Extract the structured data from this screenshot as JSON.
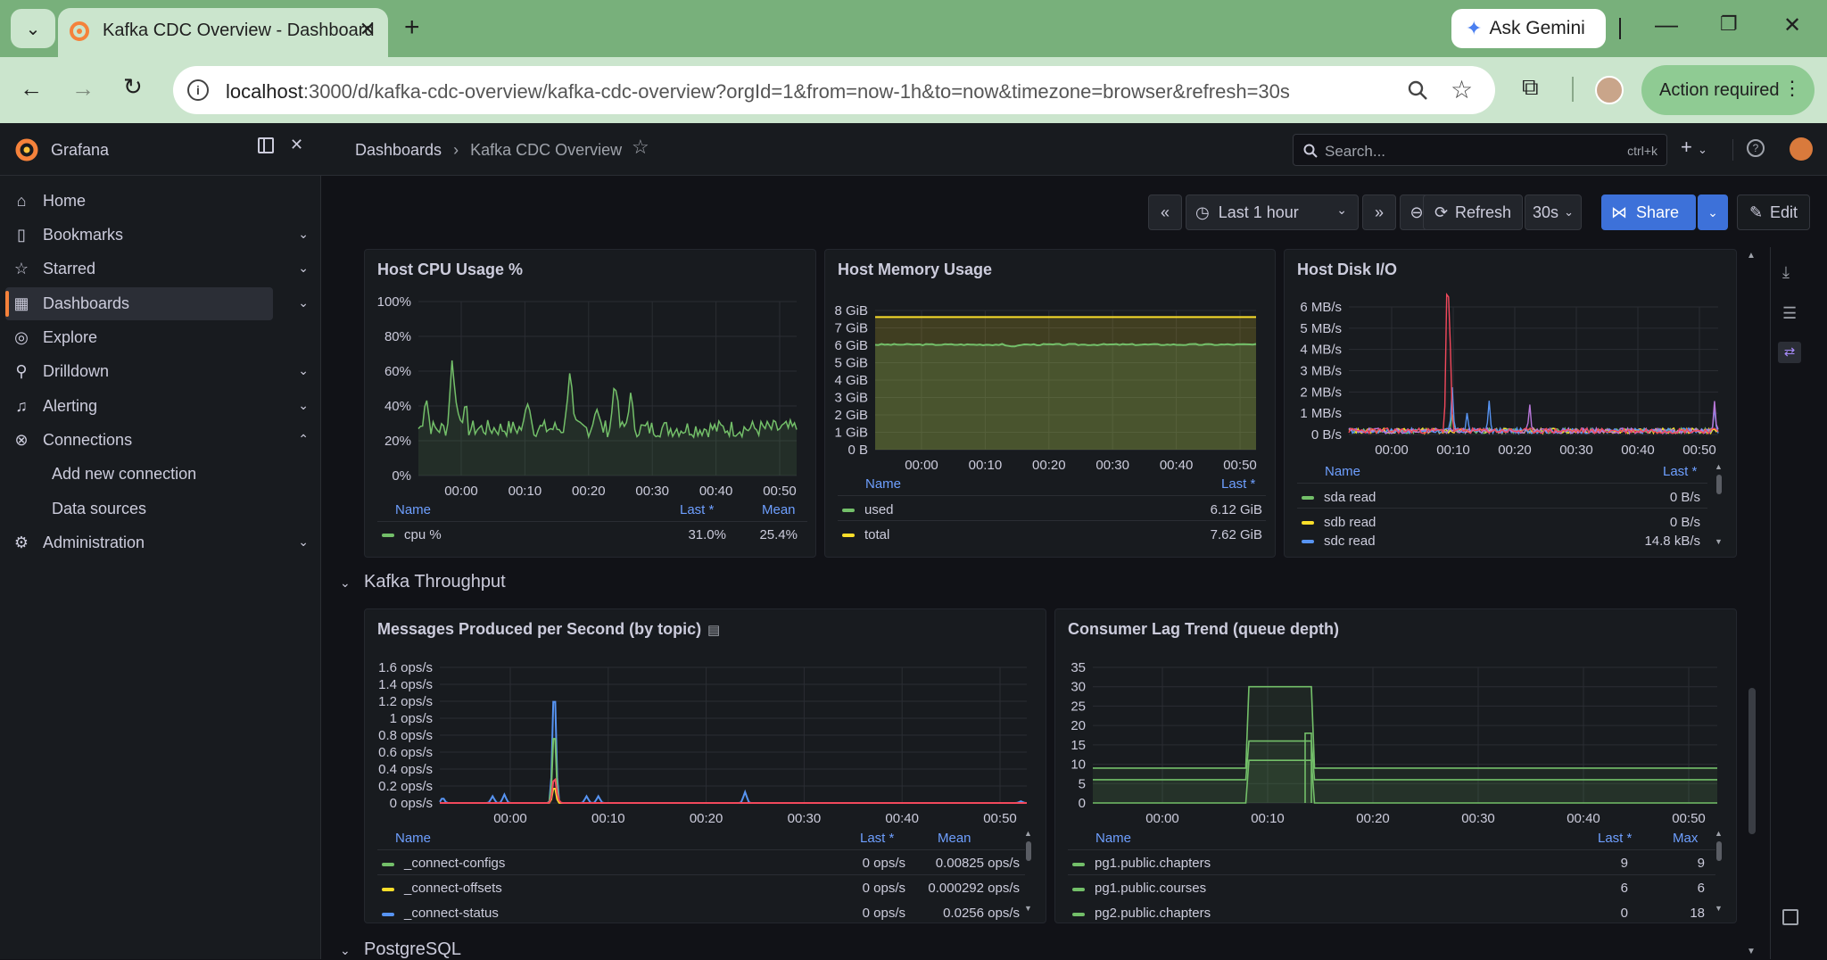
{
  "browser": {
    "tab_title": "Kafka CDC Overview - Dashboard",
    "url_host": "localhost",
    "url_rest": ":3000/d/kafka-cdc-overview/kafka-cdc-overview?orgId=1&from=now-1h&to=now&timezone=browser&refresh=30s",
    "gemini_label": "Ask Gemini",
    "action_label": "Action required"
  },
  "grafana": {
    "brand": "Grafana",
    "breadcrumb": [
      "Dashboards",
      "Kafka CDC Overview"
    ],
    "search_placeholder": "Search...",
    "search_shortcut": "ctrl+k"
  },
  "sidebar": {
    "items": [
      {
        "label": "Home",
        "icon": "home-icon"
      },
      {
        "label": "Bookmarks",
        "icon": "bookmark-icon"
      },
      {
        "label": "Starred",
        "icon": "star-icon"
      },
      {
        "label": "Dashboards",
        "icon": "dashboards-icon"
      },
      {
        "label": "Explore",
        "icon": "compass-icon"
      },
      {
        "label": "Drilldown",
        "icon": "drilldown-icon"
      },
      {
        "label": "Alerting",
        "icon": "bell-icon"
      },
      {
        "label": "Connections",
        "icon": "connections-icon"
      },
      {
        "label": "Add new connection"
      },
      {
        "label": "Data sources"
      },
      {
        "label": "Administration",
        "icon": "gear-icon"
      }
    ]
  },
  "toolbar": {
    "time_range": "Last 1 hour",
    "refresh_label": "Refresh",
    "refresh_interval": "30s",
    "share_label": "Share",
    "edit_label": "Edit"
  },
  "rows": {
    "kafka": "Kafka Throughput",
    "postgres": "PostgreSQL"
  },
  "panels": {
    "cpu": {
      "title": "Host CPU Usage %",
      "yticks": [
        "100%",
        "80%",
        "60%",
        "40%",
        "20%",
        "0%"
      ],
      "xticks": [
        "00:00",
        "00:10",
        "00:20",
        "00:30",
        "00:40",
        "00:50"
      ],
      "legend_headers": [
        "Name",
        "Last *",
        "Mean"
      ],
      "legend": [
        {
          "name": "cpu %",
          "last": "31.0%",
          "mean": "25.4%",
          "color": "#73bf69"
        }
      ]
    },
    "mem": {
      "title": "Host Memory Usage",
      "yticks": [
        "8 GiB",
        "7 GiB",
        "6 GiB",
        "5 GiB",
        "4 GiB",
        "3 GiB",
        "2 GiB",
        "1 GiB",
        "0 B"
      ],
      "xticks": [
        "00:00",
        "00:10",
        "00:20",
        "00:30",
        "00:40",
        "00:50"
      ],
      "legend_headers": [
        "Name",
        "Last *"
      ],
      "legend": [
        {
          "name": "used",
          "last": "6.12 GiB",
          "color": "#73bf69"
        },
        {
          "name": "total",
          "last": "7.62 GiB",
          "color": "#fade2a"
        }
      ]
    },
    "disk": {
      "title": "Host Disk I/O",
      "yticks": [
        "6 MB/s",
        "5 MB/s",
        "4 MB/s",
        "3 MB/s",
        "2 MB/s",
        "1 MB/s",
        "0 B/s"
      ],
      "xticks": [
        "00:00",
        "00:10",
        "00:20",
        "00:30",
        "00:40",
        "00:50"
      ],
      "legend_headers": [
        "Name",
        "Last *"
      ],
      "legend": [
        {
          "name": "sda read",
          "last": "0 B/s",
          "color": "#73bf69"
        },
        {
          "name": "sdb read",
          "last": "0 B/s",
          "color": "#fade2a"
        },
        {
          "name": "sdc read",
          "last": "14.8 kB/s",
          "color": "#5794f2"
        }
      ]
    },
    "msgs": {
      "title": "Messages Produced per Second (by topic)",
      "yticks": [
        "1.6 ops/s",
        "1.4 ops/s",
        "1.2 ops/s",
        "1 ops/s",
        "0.8 ops/s",
        "0.6 ops/s",
        "0.4 ops/s",
        "0.2 ops/s",
        "0 ops/s"
      ],
      "xticks": [
        "00:00",
        "00:10",
        "00:20",
        "00:30",
        "00:40",
        "00:50"
      ],
      "legend_headers": [
        "Name",
        "Last *",
        "Mean"
      ],
      "legend": [
        {
          "name": "_connect-configs",
          "last": "0 ops/s",
          "mean": "0.00825 ops/s",
          "color": "#73bf69"
        },
        {
          "name": "_connect-offsets",
          "last": "0 ops/s",
          "mean": "0.000292 ops/s",
          "color": "#fade2a"
        },
        {
          "name": "_connect-status",
          "last": "0 ops/s",
          "mean": "0.0256 ops/s",
          "color": "#5794f2"
        }
      ]
    },
    "lag": {
      "title": "Consumer Lag Trend (queue depth)",
      "yticks": [
        "35",
        "30",
        "25",
        "20",
        "15",
        "10",
        "5",
        "0"
      ],
      "xticks": [
        "00:00",
        "00:10",
        "00:20",
        "00:30",
        "00:40",
        "00:50"
      ],
      "legend_headers": [
        "Name",
        "Last *",
        "Max"
      ],
      "legend": [
        {
          "name": "pg1.public.chapters",
          "last": "9",
          "max": "9",
          "color": "#73bf69"
        },
        {
          "name": "pg1.public.courses",
          "last": "6",
          "max": "6",
          "color": "#73bf69"
        },
        {
          "name": "pg2.public.chapters",
          "last": "0",
          "max": "18",
          "color": "#73bf69"
        }
      ]
    }
  }
}
